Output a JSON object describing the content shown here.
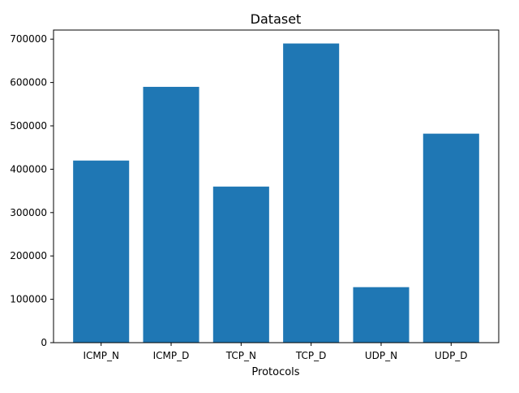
{
  "chart_data": {
    "type": "bar",
    "title": "Dataset",
    "xlabel": "Protocols",
    "ylabel": "",
    "categories": [
      "ICMP_N",
      "ICMP_D",
      "TCP_N",
      "TCP_D",
      "UDP_N",
      "UDP_D"
    ],
    "values": [
      420000,
      590000,
      360000,
      690000,
      128000,
      482000
    ],
    "ylim": [
      0,
      721000
    ],
    "yticks": [
      0,
      100000,
      200000,
      300000,
      400000,
      500000,
      600000,
      700000
    ],
    "grid": false,
    "bar_color": "#1f77b4"
  }
}
